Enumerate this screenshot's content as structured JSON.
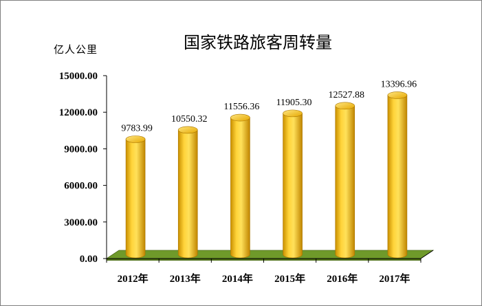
{
  "chart_data": {
    "type": "bar",
    "title": "国家铁路旅客周转量",
    "ylabel": "亿人公里",
    "xlabel": "",
    "categories": [
      "2012年",
      "2013年",
      "2014年",
      "2015年",
      "2016年",
      "2017年"
    ],
    "values": [
      9783.99,
      10550.32,
      11556.36,
      11905.3,
      12527.88,
      13396.96
    ],
    "data_labels": [
      "9783.99",
      "10550.32",
      "11556.36",
      "11905.30",
      "12527.88",
      "13396.96"
    ],
    "yticks": [
      "0.00",
      "3000.00",
      "6000.00",
      "9000.00",
      "12000.00",
      "15000.00"
    ],
    "ylim": [
      0,
      15000
    ],
    "bar_style": "3d-cylinder",
    "bar_color": "#f2b600",
    "floor_color": "#6f9a2a",
    "grid": false,
    "legend": "none"
  }
}
